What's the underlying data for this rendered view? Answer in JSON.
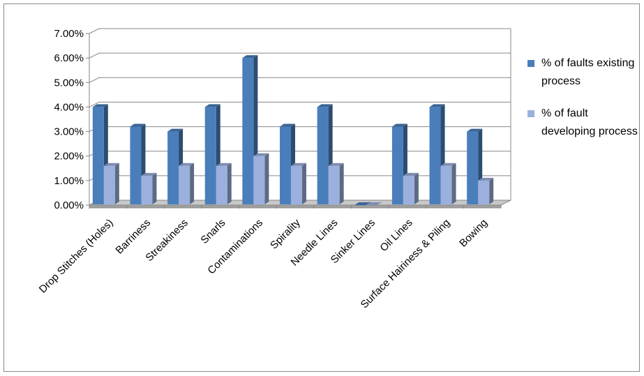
{
  "chart_data": {
    "type": "bar3d",
    "categories": [
      "Drop Stitches (Holes)",
      "Barriness",
      "Streakiness",
      "Snarls",
      "Contaminations",
      "Spirality",
      "Needle Lines",
      "Sinker Lines",
      "Oil Lines",
      "Surface Hairiness & Piling",
      "Bowing"
    ],
    "series": [
      {
        "name": "% of faults existing process",
        "color": "#4a7ebb",
        "values": [
          4,
          3.2,
          3,
          4,
          6,
          3.2,
          4,
          0,
          3.2,
          4,
          3
        ]
      },
      {
        "name": "% of fault developing process",
        "color": "#9bb0dc",
        "values": [
          1.6,
          1.2,
          1.6,
          1.6,
          2,
          1.6,
          1.6,
          0,
          1.2,
          1.6,
          1.0
        ]
      }
    ],
    "ylim": [
      0,
      7
    ],
    "yticks": [
      {
        "value": 0,
        "label": "0.00%"
      },
      {
        "value": 1,
        "label": "1.00%"
      },
      {
        "value": 2,
        "label": "2.00%"
      },
      {
        "value": 3,
        "label": "3.00%"
      },
      {
        "value": 4,
        "label": "4.00%"
      },
      {
        "value": 5,
        "label": "5.00%"
      },
      {
        "value": 6,
        "label": "6.00%"
      },
      {
        "value": 7,
        "label": "7.00%"
      }
    ],
    "grid": true,
    "legend": "right"
  }
}
